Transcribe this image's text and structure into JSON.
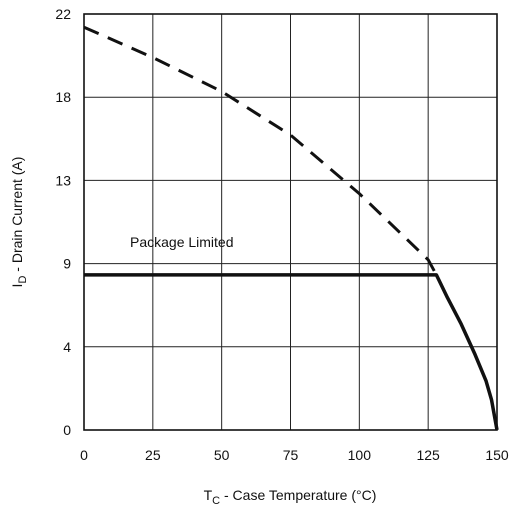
{
  "chart_data": {
    "type": "line",
    "title": "",
    "xlabel_main": "T",
    "xlabel_sub": "C",
    "xlabel_rest": " - Case Temperature (°C)",
    "ylabel_main": "I",
    "ylabel_sub": "D",
    "ylabel_rest": " - Drain Current (A)",
    "xlim": [
      0,
      150
    ],
    "ylim": [
      0,
      22
    ],
    "x_ticks": [
      0,
      25,
      50,
      75,
      100,
      125,
      150
    ],
    "x_tick_labels": [
      "0",
      "25",
      "50",
      "75",
      "100",
      "125",
      "150"
    ],
    "y_ticks": [
      0,
      4.4,
      8.8,
      13.2,
      17.6,
      22
    ],
    "y_tick_labels": [
      "0",
      "4",
      "9",
      "13",
      "18",
      "22"
    ],
    "grid": true,
    "annotation": "Package Limited",
    "series": [
      {
        "style": "dashed",
        "x": [
          0,
          25,
          50,
          75,
          100,
          125,
          128
        ],
        "y": [
          21.3,
          19.7,
          17.9,
          15.6,
          12.5,
          9.0,
          8.2
        ]
      },
      {
        "style": "solid",
        "x": [
          0,
          128,
          132,
          137,
          142,
          146,
          148,
          150
        ],
        "y": [
          8.2,
          8.2,
          7.0,
          5.6,
          4.0,
          2.6,
          1.6,
          0
        ]
      }
    ]
  }
}
